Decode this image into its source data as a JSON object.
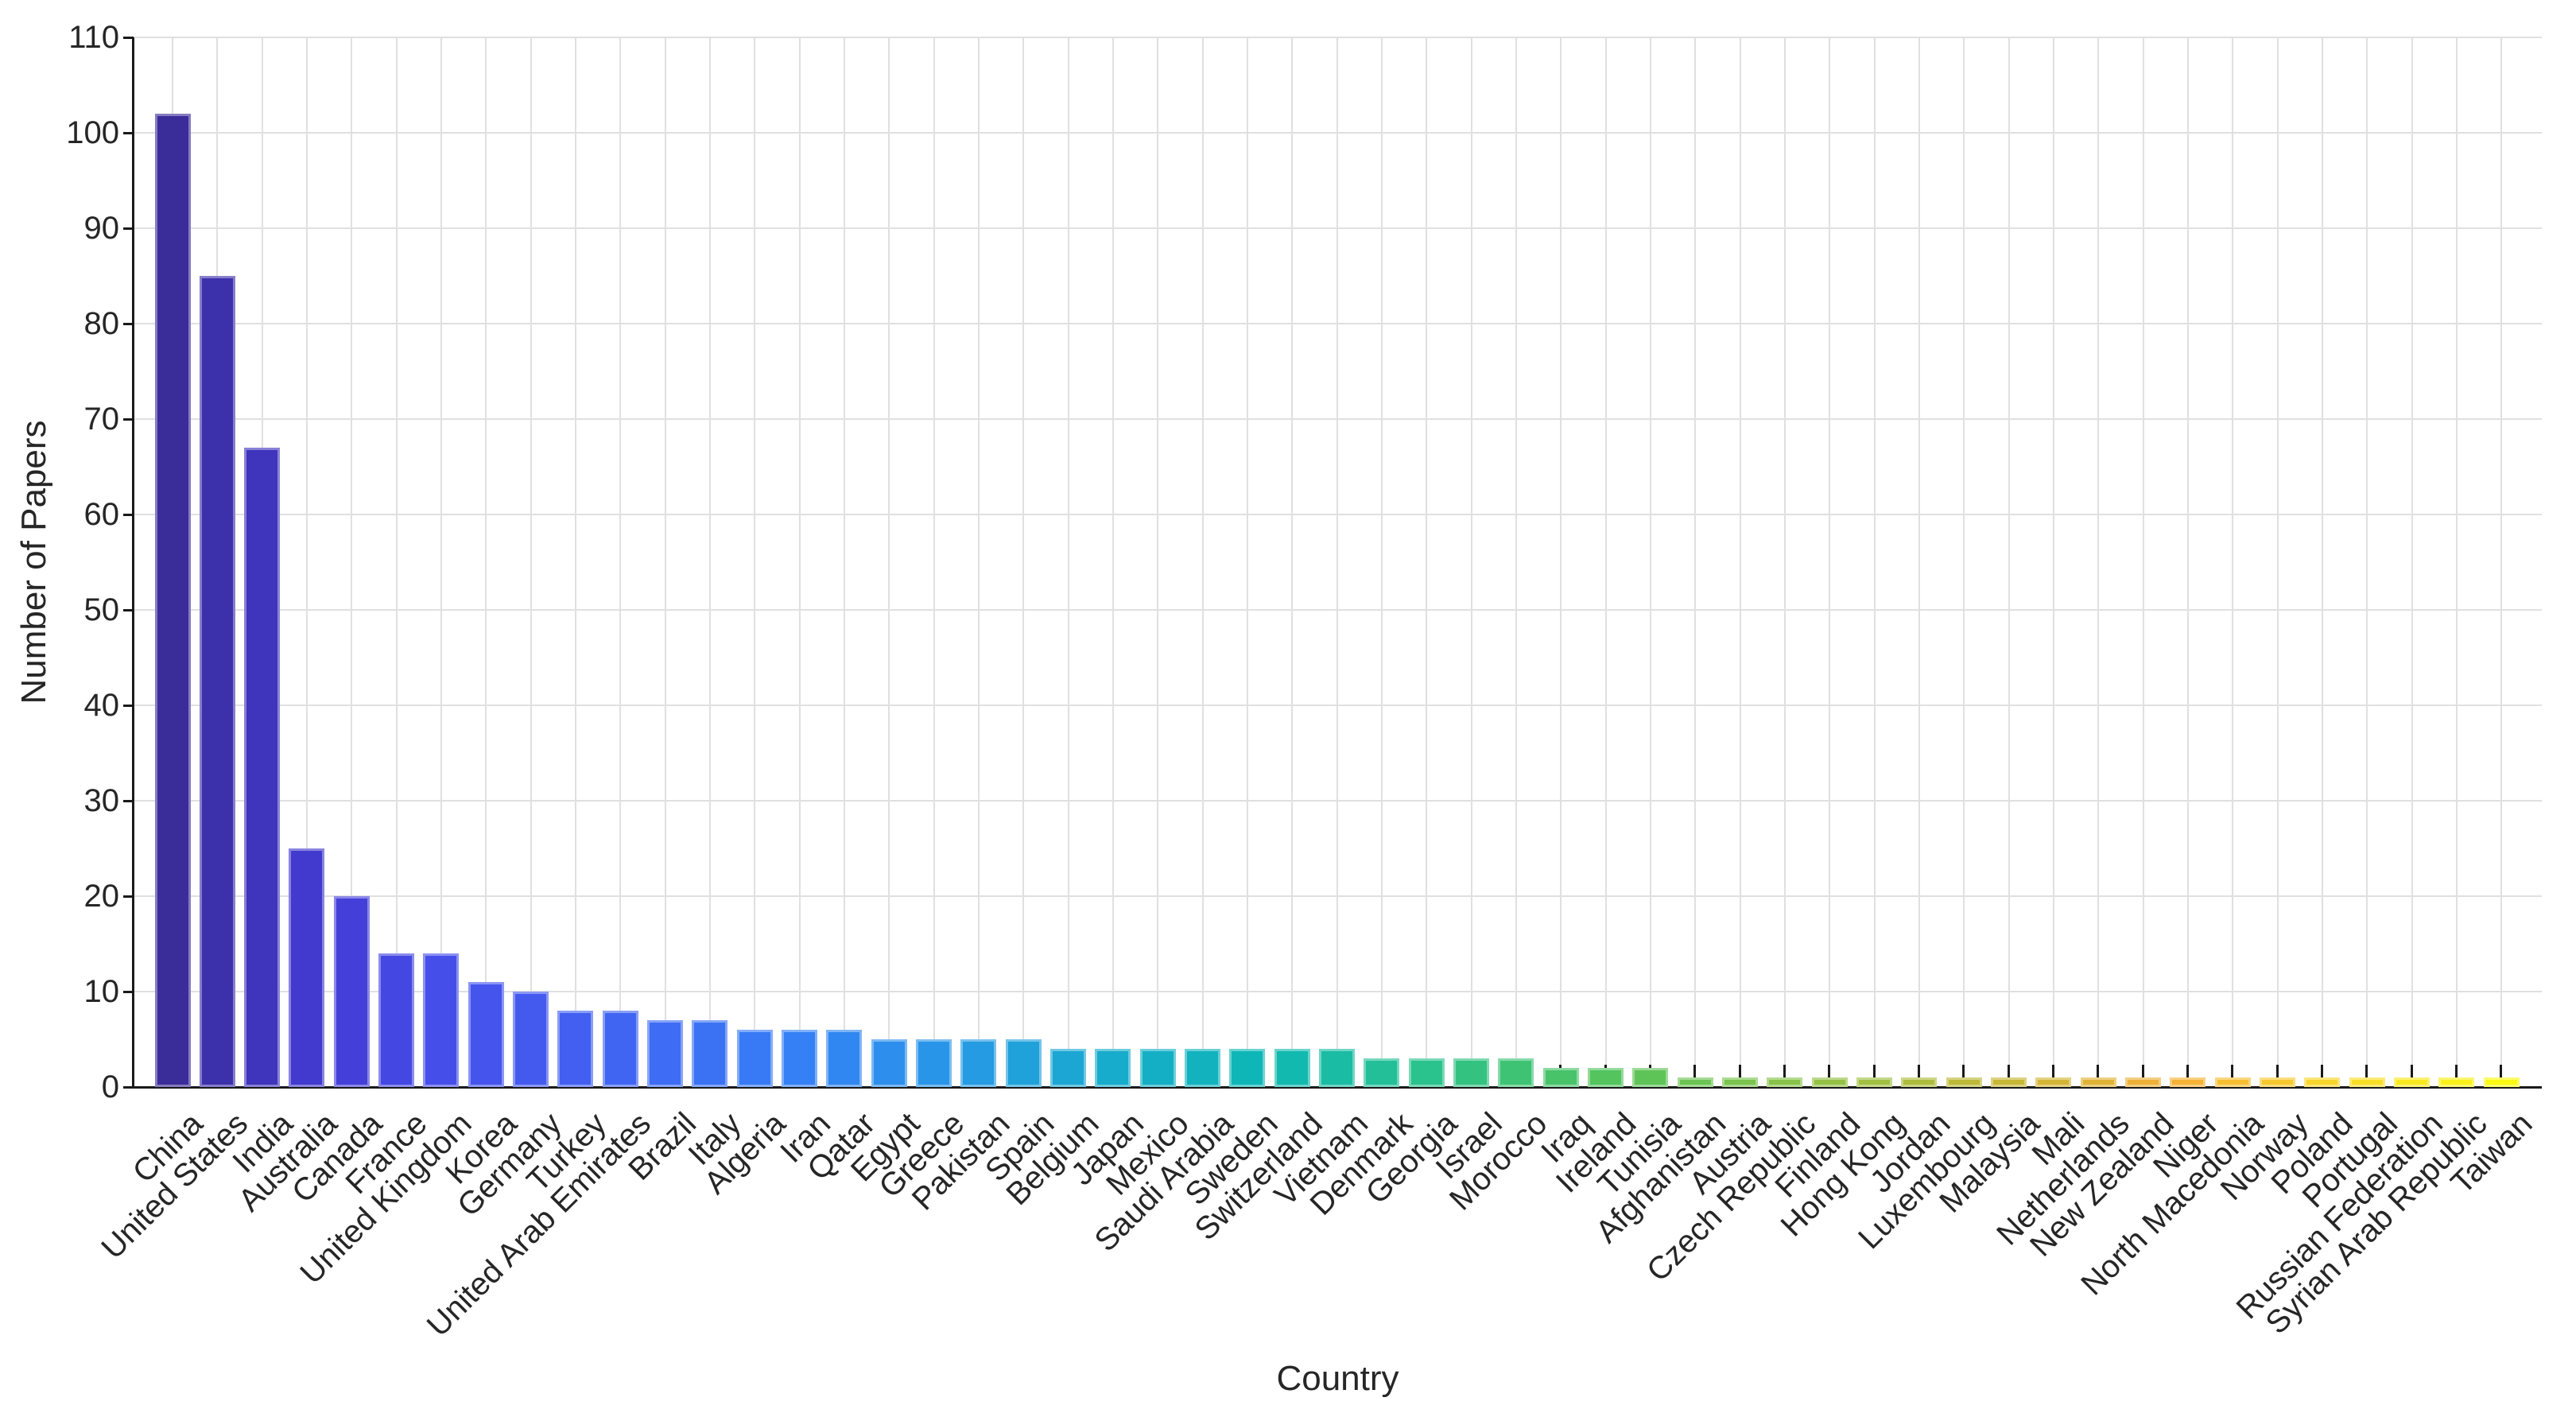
{
  "chart_data": {
    "type": "bar",
    "title": "",
    "xlabel": "Country",
    "ylabel": "Number of Papers",
    "ylim": [
      0,
      110
    ],
    "ytick_step": 10,
    "grid": true,
    "legend": "none",
    "categories": [
      "China",
      "United States",
      "India",
      "Australia",
      "Canada",
      "France",
      "United Kingdom",
      "Korea",
      "Germany",
      "Turkey",
      "United Arab Emirates",
      "Brazil",
      "Italy",
      "Algeria",
      "Iran",
      "Qatar",
      "Egypt",
      "Greece",
      "Pakistan",
      "Spain",
      "Belgium",
      "Japan",
      "Mexico",
      "Saudi Arabia",
      "Sweden",
      "Switzerland",
      "Vietnam",
      "Denmark",
      "Georgia",
      "Israel",
      "Morocco",
      "Iraq",
      "Ireland",
      "Tunisia",
      "Afghanistan",
      "Austria",
      "Czech Republic",
      "Finland",
      "Hong Kong",
      "Jordan",
      "Luxembourg",
      "Malaysia",
      "Mali",
      "Netherlands",
      "New Zealand",
      "Niger",
      "North Macedonia",
      "Norway",
      "Poland",
      "Portugal",
      "Russian Federation",
      "Syrian Arab Republic",
      "Taiwan"
    ],
    "values": [
      102,
      85,
      67,
      25,
      20,
      14,
      14,
      11,
      10,
      8,
      8,
      7,
      7,
      6,
      6,
      6,
      5,
      5,
      5,
      5,
      4,
      4,
      4,
      4,
      4,
      4,
      4,
      3,
      3,
      3,
      3,
      2,
      2,
      2,
      1,
      1,
      1,
      1,
      1,
      1,
      1,
      1,
      1,
      1,
      1,
      1,
      1,
      1,
      1,
      1,
      1,
      1,
      1
    ],
    "colormap_name": "parula",
    "colormap_stops": [
      {
        "t": 0.0,
        "c": "#3A2C99"
      },
      {
        "t": 0.06,
        "c": "#4239D0"
      },
      {
        "t": 0.12,
        "c": "#4650EC"
      },
      {
        "t": 0.19,
        "c": "#4164F3"
      },
      {
        "t": 0.27,
        "c": "#3580F5"
      },
      {
        "t": 0.33,
        "c": "#2896E8"
      },
      {
        "t": 0.4,
        "c": "#17ABCD"
      },
      {
        "t": 0.47,
        "c": "#0EB7B4"
      },
      {
        "t": 0.54,
        "c": "#2BC28C"
      },
      {
        "t": 0.62,
        "c": "#55C45B"
      },
      {
        "t": 0.7,
        "c": "#8CC348"
      },
      {
        "t": 0.78,
        "c": "#C3B836"
      },
      {
        "t": 0.86,
        "c": "#F5AF36"
      },
      {
        "t": 0.93,
        "c": "#F8D92B"
      },
      {
        "t": 1.0,
        "c": "#FAFA12"
      }
    ],
    "axis_color": "#1a1a1a",
    "grid_color": "#e0e0e0",
    "tick_label_color": "#262626",
    "background_color": "#ffffff",
    "yticks": [
      0,
      10,
      20,
      30,
      40,
      50,
      60,
      70,
      80,
      90,
      100,
      110
    ]
  }
}
